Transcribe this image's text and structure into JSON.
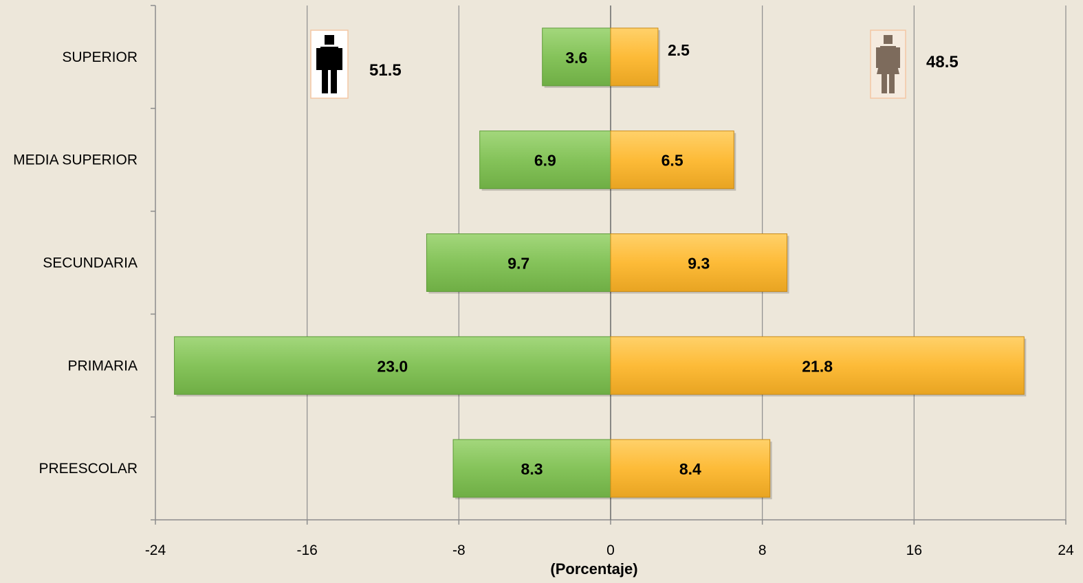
{
  "chart_data": {
    "type": "bar",
    "orientation": "horizontal",
    "layout": "population-pyramid",
    "categories": [
      "SUPERIOR",
      "MEDIA SUPERIOR",
      "SECUNDARIA",
      "PRIMARIA",
      "PREESCOLAR"
    ],
    "series": [
      {
        "values": [
          3.6,
          6.9,
          9.7,
          23.0,
          8.3
        ],
        "labels": [
          "3.6",
          "6.9",
          "9.7",
          "23.0",
          "8.3"
        ],
        "side": "left",
        "color": "#85c35a"
      },
      {
        "values": [
          2.5,
          6.5,
          9.3,
          21.8,
          8.4
        ],
        "labels": [
          "2.5",
          "6.5",
          "9.3",
          "21.8",
          "8.4"
        ],
        "side": "right",
        "color": "#fdbb38"
      }
    ],
    "xlim": [
      -24,
      24
    ],
    "xticks": [
      -24,
      -16,
      -8,
      0,
      8,
      16,
      24
    ],
    "xtick_labels": [
      "-24",
      "-16",
      "-8",
      "0",
      "8",
      "16",
      "24"
    ],
    "xlabel": "(Porcentaje)",
    "grid": "vertical",
    "totals": {
      "male": {
        "value": "51.5",
        "icon": "male-person-icon"
      },
      "female": {
        "value": "48.5",
        "icon": "female-person-icon"
      }
    },
    "colors": {
      "background": "#ede7da",
      "male_bar": "#85c35a",
      "female_bar": "#fdbb38",
      "grid": "#8c8c8c"
    }
  }
}
